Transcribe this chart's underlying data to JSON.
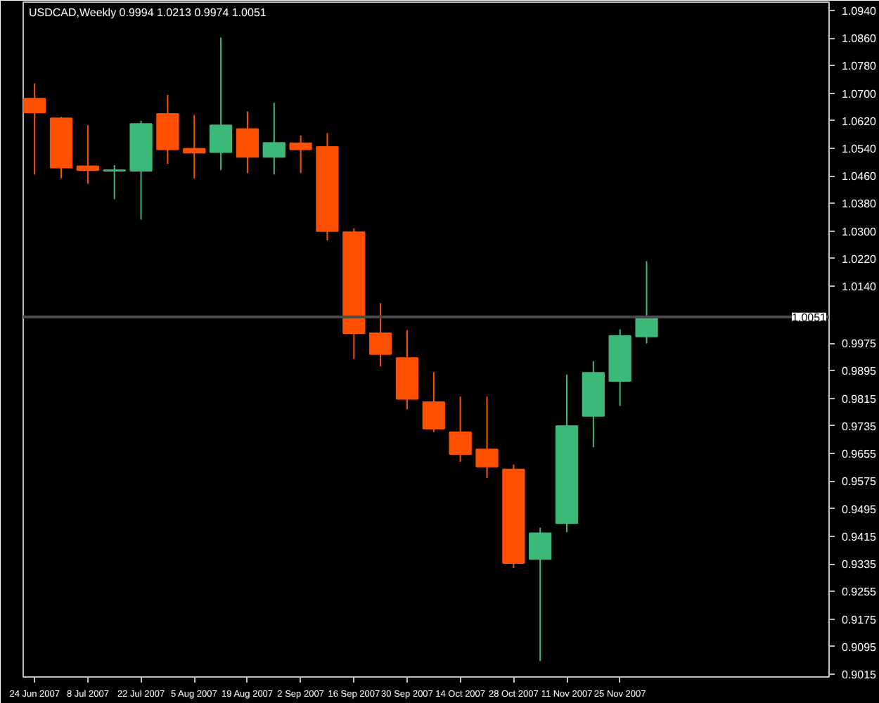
{
  "chart_data": {
    "type": "candlestick",
    "title": "USDCAD,Weekly  0.9994 1.0213 0.9974 1.0051",
    "x": [
      "2007-06-24",
      "2007-07-01",
      "2007-07-08",
      "2007-07-15",
      "2007-07-22",
      "2007-07-29",
      "2007-08-05",
      "2007-08-12",
      "2007-08-19",
      "2007-08-26",
      "2007-09-02",
      "2007-09-09",
      "2007-09-16",
      "2007-09-23",
      "2007-09-30",
      "2007-10-07",
      "2007-10-14",
      "2007-10-21",
      "2007-10-28",
      "2007-11-04",
      "2007-11-11",
      "2007-11-18",
      "2007-11-25",
      "2007-12-02"
    ],
    "ohlc": [
      [
        1.0684,
        1.0728,
        1.0464,
        1.0644
      ],
      [
        1.0627,
        1.0631,
        1.0453,
        1.0484
      ],
      [
        1.0488,
        1.0607,
        1.0437,
        1.0477
      ],
      [
        1.0475,
        1.0491,
        1.0393,
        1.0477
      ],
      [
        1.0475,
        1.062,
        1.0333,
        1.0611
      ],
      [
        1.064,
        1.0695,
        1.0495,
        1.0537
      ],
      [
        1.0539,
        1.0637,
        1.0453,
        1.0527
      ],
      [
        1.0529,
        1.0861,
        1.0477,
        1.0607
      ],
      [
        1.0596,
        1.0647,
        1.0468,
        1.0515
      ],
      [
        1.0515,
        1.0672,
        1.0464,
        1.0556
      ],
      [
        1.0555,
        1.0577,
        1.0468,
        1.0537
      ],
      [
        1.0544,
        1.0584,
        1.0273,
        1.03
      ],
      [
        1.0297,
        1.0308,
        0.9929,
        1.0004
      ],
      [
        1.0004,
        1.0091,
        0.9908,
        0.9943
      ],
      [
        0.9932,
        1.0013,
        0.9783,
        0.9813
      ],
      [
        0.9804,
        0.9891,
        0.9717,
        0.9727
      ],
      [
        0.9717,
        0.982,
        0.9631,
        0.9653
      ],
      [
        0.9667,
        0.982,
        0.9584,
        0.9617
      ],
      [
        0.9609,
        0.9623,
        0.9323,
        0.9337
      ],
      [
        0.9349,
        0.944,
        0.9053,
        0.9424
      ],
      [
        0.9453,
        0.9884,
        0.9427,
        0.9735
      ],
      [
        0.9764,
        0.9923,
        0.9673,
        0.9889
      ],
      [
        0.9865,
        1.0015,
        0.9793,
        0.9996
      ],
      [
        0.9994,
        1.0213,
        0.9974,
        1.0051
      ]
    ],
    "colors": [
      "#ff5000",
      "#ff5000",
      "#ff5000",
      "#3cb878",
      "#3cb878",
      "#ff5000",
      "#ff5000",
      "#3cb878",
      "#ff5000",
      "#3cb878",
      "#ff5000",
      "#ff5000",
      "#ff5000",
      "#ff5000",
      "#ff5000",
      "#ff5000",
      "#ff5000",
      "#ff5000",
      "#ff5000",
      "#3cb878",
      "#3cb878",
      "#3cb878",
      "#3cb878",
      "#3cb878"
    ],
    "xlim": [
      "2007-06-21",
      "2008-01-19"
    ],
    "xticks": [
      {
        "value": "2007-06-24",
        "label": "24 Jun 2007"
      },
      {
        "value": "2007-07-08",
        "label": "8 Jul 2007"
      },
      {
        "value": "2007-07-22",
        "label": "22 Jul 2007"
      },
      {
        "value": "2007-08-05",
        "label": "5 Aug 2007"
      },
      {
        "value": "2007-08-19",
        "label": "19 Aug 2007"
      },
      {
        "value": "2007-09-02",
        "label": "2 Sep 2007"
      },
      {
        "value": "2007-09-16",
        "label": "16 Sep 2007"
      },
      {
        "value": "2007-09-30",
        "label": "30 Sep 2007"
      },
      {
        "value": "2007-10-14",
        "label": "14 Oct 2007"
      },
      {
        "value": "2007-10-28",
        "label": "28 Oct 2007"
      },
      {
        "value": "2007-11-11",
        "label": "11 Nov 2007"
      },
      {
        "value": "2007-11-25",
        "label": "25 Nov 2007"
      }
    ],
    "ylim": [
      0.9007,
      1.0964
    ],
    "yticks": [
      {
        "value": 1.094,
        "label": "1.0940"
      },
      {
        "value": 1.086,
        "label": "1.0860"
      },
      {
        "value": 1.078,
        "label": "1.0780"
      },
      {
        "value": 1.07,
        "label": "1.0700"
      },
      {
        "value": 1.062,
        "label": "1.0620"
      },
      {
        "value": 1.054,
        "label": "1.0540"
      },
      {
        "value": 1.046,
        "label": "1.0460"
      },
      {
        "value": 1.038,
        "label": "1.0380"
      },
      {
        "value": 1.03,
        "label": "1.0300"
      },
      {
        "value": 1.022,
        "label": "1.0220"
      },
      {
        "value": 1.014,
        "label": "1.0140"
      },
      {
        "value": 0.9975,
        "label": "0.9975"
      },
      {
        "value": 0.9895,
        "label": "0.9895"
      },
      {
        "value": 0.9815,
        "label": "0.9815"
      },
      {
        "value": 0.9735,
        "label": "0.9735"
      },
      {
        "value": 0.9655,
        "label": "0.9655"
      },
      {
        "value": 0.9575,
        "label": "0.9575"
      },
      {
        "value": 0.9495,
        "label": "0.9495"
      },
      {
        "value": 0.9415,
        "label": "0.9415"
      },
      {
        "value": 0.9335,
        "label": "0.9335"
      },
      {
        "value": 0.9255,
        "label": "0.9255"
      },
      {
        "value": 0.9175,
        "label": "0.9175"
      },
      {
        "value": 0.9095,
        "label": "0.9095"
      },
      {
        "value": 0.9015,
        "label": "0.9015"
      }
    ],
    "ref_lines": [
      {
        "axis": "y",
        "value": 1.0051,
        "label": "1.0051",
        "color": "#4a4a4a"
      }
    ],
    "grid": false
  }
}
